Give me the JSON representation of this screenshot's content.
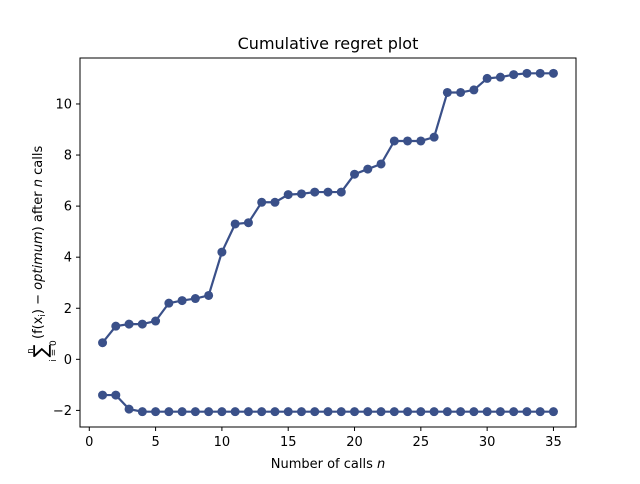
{
  "chart_data": {
    "type": "line",
    "title": "Cumulative regret plot",
    "xlabel_text": "Number of calls ",
    "xlabel_var": "n",
    "ylabel": {
      "sum_symbol": "∑",
      "sum_upper": "n",
      "sum_lower": "i = 0",
      "expression_prefix": "(f(x",
      "expression_sub": "i",
      "expression_mid": ") − ",
      "expression_italic": "optimum",
      "expression_suffix": ") after ",
      "var": "n",
      "tail": " calls"
    },
    "xlim": [
      -0.7,
      36.7
    ],
    "ylim": [
      -2.65,
      11.8
    ],
    "x_ticks": [
      0,
      5,
      10,
      15,
      20,
      25,
      30,
      35
    ],
    "x_tick_labels": [
      "0",
      "5",
      "10",
      "15",
      "20",
      "25",
      "30",
      "35"
    ],
    "y_ticks": [
      -2,
      0,
      2,
      4,
      6,
      8,
      10
    ],
    "y_tick_labels": [
      "−2",
      "0",
      "2",
      "4",
      "6",
      "8",
      "10"
    ],
    "grid": false,
    "x": [
      1,
      2,
      3,
      4,
      5,
      6,
      7,
      8,
      9,
      10,
      11,
      12,
      13,
      14,
      15,
      16,
      17,
      18,
      19,
      20,
      21,
      22,
      23,
      24,
      25,
      26,
      27,
      28,
      29,
      30,
      31,
      32,
      33,
      34,
      35
    ],
    "series": [
      {
        "color": "#3a5089",
        "values": [
          0.65,
          1.3,
          1.38,
          1.38,
          1.5,
          2.2,
          2.3,
          2.38,
          2.5,
          4.2,
          5.3,
          5.35,
          6.15,
          6.15,
          6.45,
          6.48,
          6.55,
          6.55,
          6.55,
          7.25,
          7.45,
          7.65,
          8.55,
          8.55,
          8.55,
          8.7,
          10.45,
          10.45,
          10.55,
          11.0,
          11.05,
          11.15,
          11.2,
          11.2,
          11.2
        ]
      },
      {
        "color": "#3a5089",
        "values": [
          -1.4,
          -1.4,
          -1.95,
          -2.05,
          -2.05,
          -2.05,
          -2.05,
          -2.05,
          -2.05,
          -2.05,
          -2.05,
          -2.05,
          -2.05,
          -2.05,
          -2.05,
          -2.05,
          -2.05,
          -2.05,
          -2.05,
          -2.05,
          -2.05,
          -2.05,
          -2.05,
          -2.05,
          -2.05,
          -2.05,
          -2.05,
          -2.05,
          -2.05,
          -2.05,
          -2.05,
          -2.05,
          -2.05,
          -2.05,
          -2.05
        ]
      }
    ]
  }
}
